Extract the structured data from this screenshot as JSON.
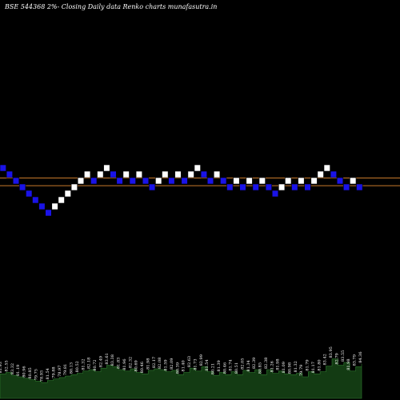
{
  "colors": {
    "background": "#000000",
    "up_brick": "#ffffff",
    "down_brick": "#1a13e8",
    "brick_border": "#000000",
    "reference_line": "#c8782a",
    "volume_fill": "#133b13",
    "volume_stroke": "#2f7a2f",
    "text": "#ffffff"
  },
  "chart_data": {
    "type": "renko",
    "title": "BSE 544368  2%-  Closing Daily data  Renko  charts munafasutra.in",
    "reference_levels": [
      1,
      -0.2
    ],
    "bricks": [
      {
        "level": 2,
        "dir": "down"
      },
      {
        "level": 1,
        "dir": "down"
      },
      {
        "level": 0,
        "dir": "down"
      },
      {
        "level": -1,
        "dir": "down"
      },
      {
        "level": -2,
        "dir": "down"
      },
      {
        "level": -3,
        "dir": "down"
      },
      {
        "level": -4,
        "dir": "down"
      },
      {
        "level": -5,
        "dir": "down"
      },
      {
        "level": -4,
        "dir": "up"
      },
      {
        "level": -3,
        "dir": "up"
      },
      {
        "level": -2,
        "dir": "up"
      },
      {
        "level": -1,
        "dir": "up"
      },
      {
        "level": 0,
        "dir": "up"
      },
      {
        "level": 1,
        "dir": "up"
      },
      {
        "level": 0,
        "dir": "down"
      },
      {
        "level": 1,
        "dir": "up"
      },
      {
        "level": 2,
        "dir": "up"
      },
      {
        "level": 1,
        "dir": "down"
      },
      {
        "level": 0,
        "dir": "down"
      },
      {
        "level": 1,
        "dir": "up"
      },
      {
        "level": 0,
        "dir": "down"
      },
      {
        "level": 1,
        "dir": "up"
      },
      {
        "level": 0,
        "dir": "down"
      },
      {
        "level": -1,
        "dir": "down"
      },
      {
        "level": 0,
        "dir": "up"
      },
      {
        "level": 1,
        "dir": "up"
      },
      {
        "level": 0,
        "dir": "down"
      },
      {
        "level": 1,
        "dir": "up"
      },
      {
        "level": 0,
        "dir": "down"
      },
      {
        "level": 1,
        "dir": "up"
      },
      {
        "level": 2,
        "dir": "up"
      },
      {
        "level": 1,
        "dir": "down"
      },
      {
        "level": 0,
        "dir": "down"
      },
      {
        "level": 1,
        "dir": "up"
      },
      {
        "level": 0,
        "dir": "down"
      },
      {
        "level": -1,
        "dir": "down"
      },
      {
        "level": 0,
        "dir": "up"
      },
      {
        "level": -1,
        "dir": "down"
      },
      {
        "level": 0,
        "dir": "up"
      },
      {
        "level": -1,
        "dir": "down"
      },
      {
        "level": 0,
        "dir": "up"
      },
      {
        "level": -1,
        "dir": "down"
      },
      {
        "level": -2,
        "dir": "down"
      },
      {
        "level": -1,
        "dir": "up"
      },
      {
        "level": 0,
        "dir": "up"
      },
      {
        "level": -1,
        "dir": "down"
      },
      {
        "level": 0,
        "dir": "up"
      },
      {
        "level": -1,
        "dir": "down"
      },
      {
        "level": 0,
        "dir": "up"
      },
      {
        "level": 1,
        "dir": "up"
      },
      {
        "level": 2,
        "dir": "up"
      },
      {
        "level": 1,
        "dir": "down"
      },
      {
        "level": 0,
        "dir": "down"
      },
      {
        "level": -1,
        "dir": "down"
      },
      {
        "level": 0,
        "dir": "up"
      },
      {
        "level": -1,
        "dir": "down"
      }
    ],
    "volume_labels": [
      "81.93",
      "82.55",
      "83.32",
      "81.19",
      "80.96",
      "80.85",
      "79.75",
      "78.93",
      "81.54",
      "79.88",
      "78.97",
      "79.81",
      "80.13",
      "80.52",
      "81.32",
      "82.18",
      "80.72",
      "82.49",
      "83.61",
      "83.38",
      "81.83",
      "81.96",
      "82.32",
      "80.69",
      "80.46",
      "81.98",
      "82.17",
      "82.08",
      "81.59",
      "82.09",
      "80.39",
      "81.40",
      "82.63",
      "81.73",
      "82.99",
      "81.54",
      "80.21",
      "81.39",
      "80.46",
      "81.74",
      "80.51",
      "82.05",
      "81.34",
      "82.39",
      "80.85",
      "82.38",
      "81.26",
      "81.98",
      "81.09",
      "80.98",
      "81.32",
      "79.79",
      "81.79",
      "81.17",
      "81.80",
      "83.42",
      "83.95",
      "82.79",
      "83.55",
      "81.98",
      "83.79",
      "84.36"
    ],
    "volume_values": [
      0.34,
      0.36,
      0.32,
      0.3,
      0.28,
      0.26,
      0.24,
      0.22,
      0.25,
      0.27,
      0.29,
      0.31,
      0.33,
      0.35,
      0.38,
      0.4,
      0.37,
      0.42,
      0.46,
      0.44,
      0.4,
      0.38,
      0.41,
      0.36,
      0.34,
      0.39,
      0.41,
      0.4,
      0.37,
      0.39,
      0.33,
      0.36,
      0.42,
      0.38,
      0.44,
      0.37,
      0.32,
      0.36,
      0.33,
      0.37,
      0.33,
      0.39,
      0.36,
      0.4,
      0.33,
      0.4,
      0.35,
      0.38,
      0.34,
      0.33,
      0.35,
      0.3,
      0.37,
      0.34,
      0.37,
      0.45,
      0.55,
      0.46,
      0.5,
      0.38,
      0.44,
      0.48
    ]
  }
}
